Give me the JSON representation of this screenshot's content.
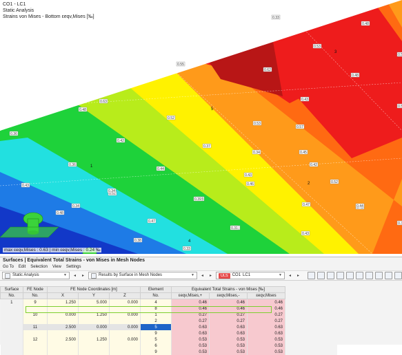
{
  "viewport": {
    "header": [
      "CO1 - LC1",
      "Static Analysis",
      "Strains von Mises - Bottom εeqv,Mises [‰]"
    ],
    "footer": "max εeqv,Mises : 0.63 | min εeqv,Mises : 0.24 ‰",
    "contour_labels": [
      "0.33",
      "0.48",
      "0.53",
      "0.56",
      "0.56",
      "0.62",
      "0.55",
      "0.48",
      "0.43",
      "0.55",
      "0.63",
      "0.53",
      "0.48",
      "0.52",
      "0.36",
      "0.45",
      "0.42",
      "0.37",
      "0.52",
      "0.57",
      "0.43",
      "0.36",
      "0.44",
      "0.46",
      "0.43",
      "0.47",
      "0.51",
      "0.33",
      "0.41",
      "0.48",
      "0.47",
      "0.34",
      "0.34",
      "0.39",
      "0.45",
      "0.43",
      "0.33",
      "0.35",
      "0.44",
      "0.31",
      "0.34",
      "0.42",
      "0.38"
    ],
    "node_labels": [
      "3",
      "5",
      "2",
      "1",
      "4"
    ],
    "colors": {
      "red": "#ee1c1c",
      "dark_red": "#b81616",
      "orange": "#ff6a12",
      "light_orange": "#ff9a1a",
      "yellow": "#fff200",
      "yellow_green": "#b8ec1b",
      "green": "#1ed23a",
      "cyan": "#22e0e0",
      "blue": "#1e7be6",
      "dark_blue": "#1238c8"
    }
  },
  "panel": {
    "title": "Surfaces | Equivalent Total Strains - von Mises in Mesh Nodes",
    "menu": [
      "Go To",
      "Edit",
      "Selection",
      "View",
      "Settings"
    ],
    "toolbar": {
      "analysis": "Static Analysis",
      "results_by": "Results by Surface in Mesh Nodes",
      "uls": "ULS",
      "combo": "CO1",
      "load_case": "LC1"
    },
    "headers": {
      "surface": "Surface",
      "surface_no": "No.",
      "fe_node": "FE Node",
      "fe_node_no": "No.",
      "coords": "FE Node Coordinates [m]",
      "x": "X",
      "y": "Y",
      "z": "Z",
      "element": "Element",
      "element_no": "No.",
      "strains": "Equivalent Total Strains - von Mises [‰]",
      "eps_plus": "εeqv,Mises,+",
      "eps_minus": "εeqv,Mises,-",
      "eps": "εeqv,Mises"
    },
    "rows": [
      {
        "surface": "1",
        "node": "9",
        "x": "1.250",
        "y": "5.000",
        "z": "0.000",
        "element": "4",
        "p": "0.46",
        "m": "0.46",
        "v": "0.46"
      },
      {
        "surface": "",
        "node": "",
        "x": "",
        "y": "",
        "z": "",
        "element": "8",
        "p": "0.46",
        "m": "0.46",
        "v": "0.46"
      },
      {
        "surface": "",
        "node": "10",
        "x": "0.000",
        "y": "1.250",
        "z": "0.000",
        "element": "1",
        "p": "0.27",
        "m": "0.27",
        "v": "0.27"
      },
      {
        "surface": "",
        "node": "",
        "x": "",
        "y": "",
        "z": "",
        "element": "2",
        "p": "0.27",
        "m": "0.27",
        "v": "0.27"
      },
      {
        "surface": "",
        "node": "11",
        "x": "2.500",
        "y": "0.000",
        "z": "0.000",
        "element": "5",
        "p": "0.63",
        "m": "0.63",
        "v": "0.63"
      },
      {
        "surface": "",
        "node": "",
        "x": "",
        "y": "",
        "z": "",
        "element": "9",
        "p": "0.63",
        "m": "0.63",
        "v": "0.63"
      },
      {
        "surface": "",
        "node": "12",
        "x": "2.500",
        "y": "1.250",
        "z": "0.000",
        "element": "5",
        "p": "0.53",
        "m": "0.53",
        "v": "0.53"
      },
      {
        "surface": "",
        "node": "",
        "x": "",
        "y": "",
        "z": "",
        "element": "6",
        "p": "0.53",
        "m": "0.53",
        "v": "0.53"
      },
      {
        "surface": "",
        "node": "",
        "x": "",
        "y": "",
        "z": "",
        "element": "9",
        "p": "0.53",
        "m": "0.53",
        "v": "0.53"
      }
    ]
  }
}
